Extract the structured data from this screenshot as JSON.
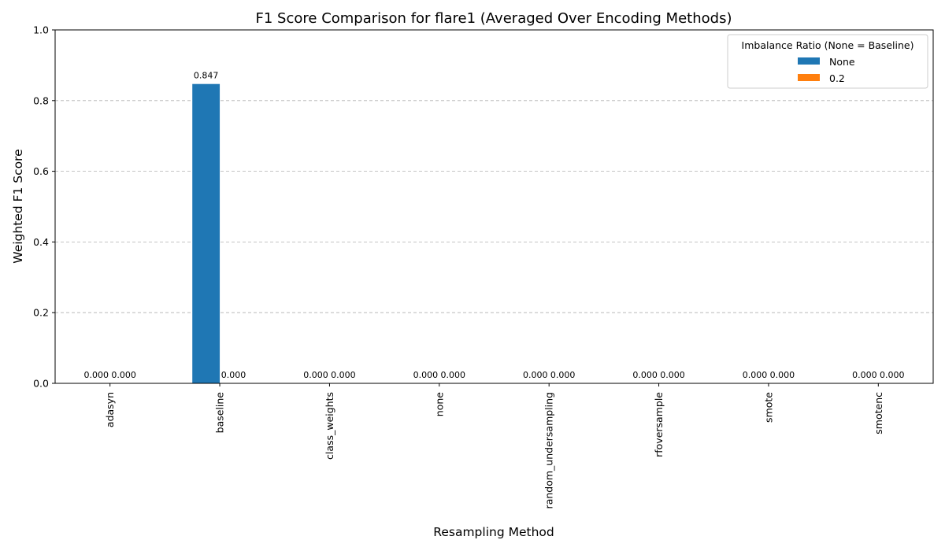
{
  "chart_data": {
    "type": "bar",
    "title": "F1 Score Comparison for flare1 (Averaged Over Encoding Methods)",
    "xlabel": "Resampling Method",
    "ylabel": "Weighted F1 Score",
    "ylim": [
      0,
      1
    ],
    "yticks": [
      "0.0",
      "0.2",
      "0.4",
      "0.6",
      "0.8",
      "1.0"
    ],
    "grid": "y-dashed",
    "legend": {
      "title": "Imbalance Ratio (None = Baseline)",
      "placement": "top-right"
    },
    "categories": [
      "adasyn",
      "baseline",
      "class_weights",
      "none",
      "random_undersampling",
      "rfoversample",
      "smote",
      "smotenc"
    ],
    "series": [
      {
        "name": "None",
        "color": "#1f77b4",
        "values": [
          0.0,
          0.847,
          0.0,
          0.0,
          0.0,
          0.0,
          0.0,
          0.0
        ],
        "labels": [
          "0.000",
          "0.847",
          "0.000",
          "0.000",
          "0.000",
          "0.000",
          "0.000",
          "0.000"
        ]
      },
      {
        "name": "0.2",
        "color": "#ff7f0e",
        "values": [
          0.0,
          0.0,
          0.0,
          0.0,
          0.0,
          0.0,
          0.0,
          0.0
        ],
        "labels": [
          "0.000",
          "0.000",
          "0.000",
          "0.000",
          "0.000",
          "0.000",
          "0.000",
          "0.000"
        ]
      }
    ]
  }
}
